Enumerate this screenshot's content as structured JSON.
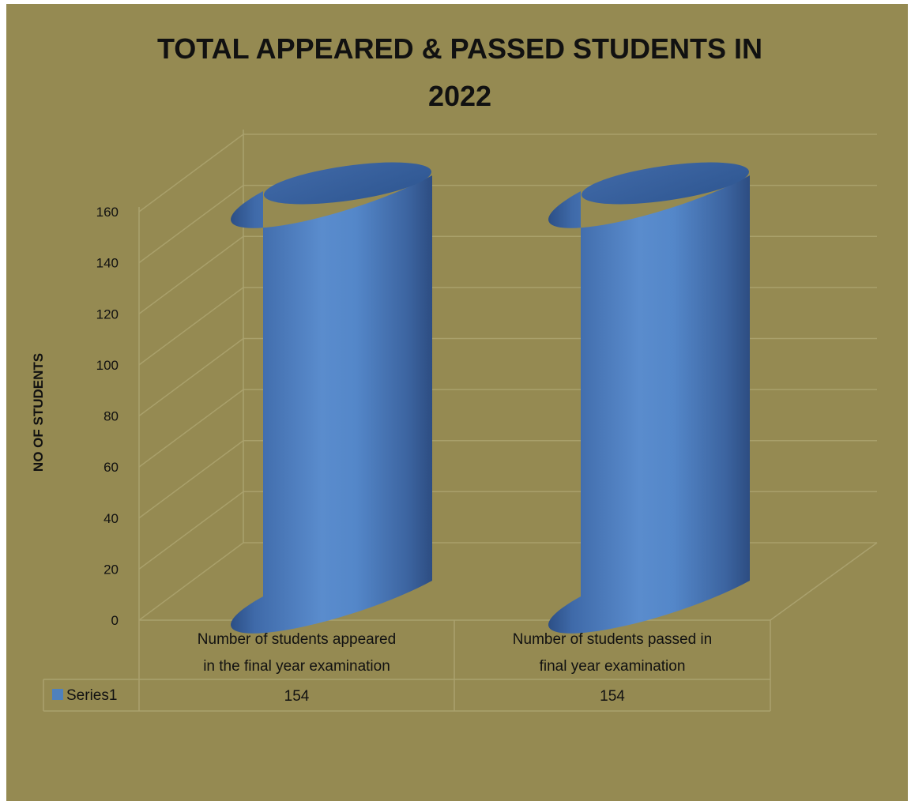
{
  "chart_data": {
    "type": "bar",
    "title_lines": [
      "TOTAL APPEARED & PASSED STUDENTS IN",
      "2022"
    ],
    "ylabel": "NO OF STUDENTS",
    "ylim": [
      0,
      160
    ],
    "yticks": [
      0,
      20,
      40,
      60,
      80,
      100,
      120,
      140,
      160
    ],
    "categories": [
      [
        "Number of students appeared",
        "in the final year examination"
      ],
      [
        "Number of students passed in",
        "final year examination"
      ]
    ],
    "series": [
      {
        "name": "Series1",
        "values": [
          154,
          154
        ],
        "color": "#4f81bd"
      }
    ],
    "data_table": {
      "show": true,
      "rows": [
        {
          "legend": "Series1",
          "cells": [
            "154",
            "154"
          ]
        }
      ]
    },
    "grid": true,
    "legend": "data-table",
    "background": "#958a52"
  }
}
